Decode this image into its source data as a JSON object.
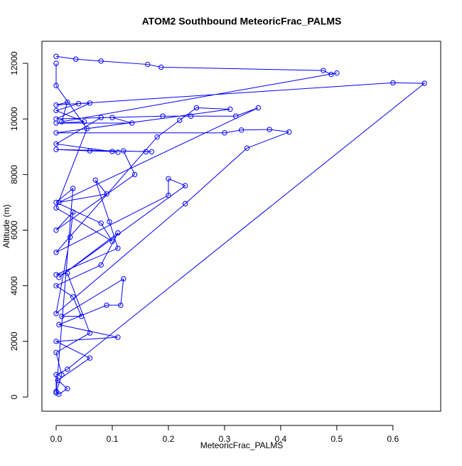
{
  "chart_data": {
    "type": "line",
    "title": "ATOM2 Southbound MeteoricFrac_PALMS",
    "x_label": "MeteoricFrac_PALMS",
    "y_label": "Altitude (m)",
    "xlim": [
      -0.0253,
      0.685
    ],
    "ylim": [
      -512,
      12793
    ],
    "xticks": [
      {
        "value": 0,
        "label": "0.0"
      },
      0.1,
      0.2,
      0.3,
      0.4,
      0.5,
      0.6
    ],
    "yticks": [
      0,
      2000,
      4000,
      6000,
      8000,
      10000,
      12000
    ],
    "markers": true,
    "marker_shape": "open-circle",
    "series": [
      {
        "color": "#0000ff",
        "x": [
          0,
          0.035,
          0.08,
          0.163,
          0.187,
          0.476,
          0.49,
          0.5,
          0.01,
          0.02,
          0.0,
          0.6,
          0.656,
          0.02,
          0,
          0,
          0.005,
          0.02,
          0.003,
          0.06,
          0,
          0.11,
          0.005,
          0.09,
          0.115,
          0.12,
          0.01,
          0.045,
          0.03,
          0,
          0.08,
          0.11,
          0.005,
          0.23,
          0.2,
          0.2,
          0.0,
          0.18,
          0.22,
          0.25,
          0.31,
          0.0,
          0.3,
          0.33,
          0.38,
          0.415,
          0.34,
          0.23,
          0.0,
          0.025,
          0.03,
          0.0,
          0.14,
          0.12,
          0.16,
          0.17,
          0.0,
          0.06,
          0.1,
          0.11,
          0.0,
          0.08,
          0.1,
          0.135,
          0.0,
          0.05,
          0.0,
          0.04,
          0.06,
          0.0,
          0.19,
          0.24,
          0.32,
          0.36,
          0.005,
          0.09,
          0.07,
          0.095,
          0.11,
          0.0,
          0.02,
          0.06,
          0.0,
          0.01,
          0.0,
          0.03,
          0.0,
          0.08,
          0.1,
          0.0,
          0.055,
          0.0,
          0.0
        ],
        "values": [
          12250,
          12150,
          12080,
          11960,
          11860,
          11740,
          11600,
          11650,
          9900,
          10600,
          10500,
          11300,
          11280,
          1000,
          800,
          200,
          100,
          300,
          600,
          1400,
          2000,
          2150,
          2600,
          3300,
          3300,
          4250,
          2900,
          2900,
          3600,
          4000,
          4750,
          5900,
          4300,
          7600,
          7850,
          7250,
          5200,
          9350,
          9950,
          10400,
          10350,
          9500,
          9500,
          9600,
          9620,
          9530,
          8950,
          6950,
          3000,
          5750,
          6650,
          6000,
          8000,
          8850,
          8820,
          8820,
          8900,
          8850,
          8830,
          8800,
          9100,
          10050,
          10050,
          9850,
          9850,
          9900,
          10300,
          10550,
          10570,
          10000,
          10100,
          10100,
          10100,
          10400,
          7000,
          7300,
          7800,
          6300,
          5350,
          4400,
          4450,
          2300,
          1600,
          800,
          150,
          7500,
          7000,
          6250,
          5600,
          6800,
          9650,
          11200,
          12000
        ]
      }
    ]
  }
}
